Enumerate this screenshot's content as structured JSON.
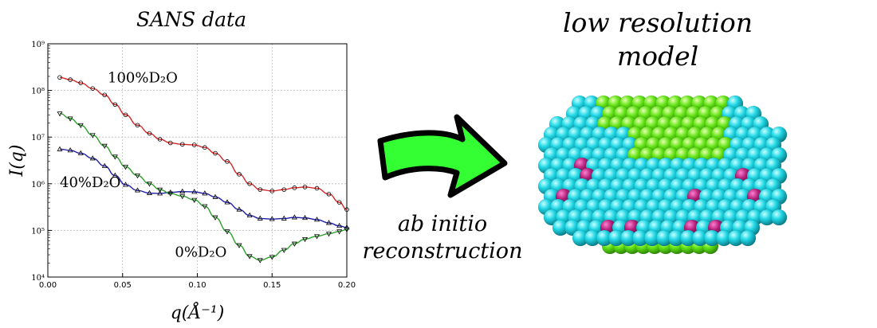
{
  "headings": {
    "chart_title": "SANS data",
    "model_title_line1": "low resolution",
    "model_title_line2": "model",
    "method_line1": "ab initio",
    "method_line2": "reconstruction"
  },
  "colors": {
    "series_100": "#d62728",
    "series_40": "#1f1fa8",
    "series_0": "#2ca02c",
    "arrow_fill": "#33ff33",
    "sphere_cyan": "#22d8e6",
    "sphere_green": "#66e61a",
    "sphere_magenta": "#b0207a"
  },
  "chart_data": {
    "type": "scatter",
    "title": "SANS data",
    "xlabel": "q(Å⁻¹)",
    "ylabel": "I(q)",
    "xlim": [
      0.0,
      0.2
    ],
    "ylim": [
      10000,
      1000000000
    ],
    "yscale": "log",
    "grid": true,
    "x_ticks": [
      "0.00",
      "0.05",
      "0.10",
      "0.15",
      "0.20"
    ],
    "x_tick_values": [
      0.0,
      0.05,
      0.1,
      0.15,
      0.2
    ],
    "y_ticks": [
      "10⁴",
      "10⁵",
      "10⁶",
      "10⁷",
      "10⁸",
      "10⁹"
    ],
    "y_tick_values": [
      10000,
      100000,
      1000000,
      10000000,
      100000000,
      1000000000
    ],
    "series": [
      {
        "name": "100%D₂O",
        "color_key": "series_100",
        "marker": "circle",
        "x": [
          0.008,
          0.015,
          0.022,
          0.03,
          0.038,
          0.045,
          0.052,
          0.06,
          0.068,
          0.075,
          0.082,
          0.09,
          0.098,
          0.105,
          0.112,
          0.12,
          0.128,
          0.135,
          0.142,
          0.15,
          0.158,
          0.165,
          0.172,
          0.18,
          0.188,
          0.195,
          0.2
        ],
        "y": [
          190000000,
          170000000,
          145000000,
          110000000,
          80000000,
          50000000,
          30000000,
          18000000,
          12000000,
          9000000,
          7500000,
          7000000,
          6800000,
          6000000,
          4500000,
          3000000,
          1600000,
          1000000,
          750000,
          700000,
          750000,
          820000,
          850000,
          800000,
          600000,
          400000,
          280000
        ]
      },
      {
        "name": "40%D₂O",
        "color_key": "series_40",
        "marker": "triangle-up",
        "x": [
          0.008,
          0.015,
          0.022,
          0.03,
          0.038,
          0.045,
          0.052,
          0.06,
          0.068,
          0.075,
          0.082,
          0.09,
          0.098,
          0.105,
          0.112,
          0.12,
          0.128,
          0.135,
          0.142,
          0.15,
          0.158,
          0.165,
          0.172,
          0.18,
          0.188,
          0.195,
          0.2
        ],
        "y": [
          5500000,
          5200000,
          4500000,
          3500000,
          2400000,
          1500000,
          950000,
          720000,
          630000,
          620000,
          650000,
          680000,
          670000,
          620000,
          520000,
          400000,
          280000,
          210000,
          180000,
          175000,
          180000,
          190000,
          185000,
          170000,
          145000,
          125000,
          115000
        ]
      },
      {
        "name": "0%D₂O",
        "color_key": "series_0",
        "marker": "triangle-down",
        "x": [
          0.008,
          0.015,
          0.022,
          0.03,
          0.038,
          0.045,
          0.052,
          0.06,
          0.068,
          0.075,
          0.082,
          0.09,
          0.098,
          0.105,
          0.112,
          0.12,
          0.128,
          0.135,
          0.142,
          0.15,
          0.158,
          0.165,
          0.172,
          0.18,
          0.188,
          0.195,
          0.2
        ],
        "y": [
          32000000,
          25000000,
          18000000,
          11000000,
          6500000,
          3800000,
          2300000,
          1500000,
          1000000,
          750000,
          620000,
          540000,
          450000,
          330000,
          190000,
          95000,
          48000,
          28000,
          23000,
          27000,
          38000,
          52000,
          65000,
          75000,
          85000,
          95000,
          105000
        ]
      }
    ],
    "annotations": [
      {
        "text": "100%D₂O",
        "x": 0.04,
        "y": 150000000,
        "label_key": "series_100"
      },
      {
        "text": "40%D₂O",
        "x": 0.008,
        "y": 850000,
        "label_key": "series_40"
      },
      {
        "text": "0%D₂O",
        "x": 0.085,
        "y": 27000,
        "label_key": "series_0"
      }
    ]
  }
}
